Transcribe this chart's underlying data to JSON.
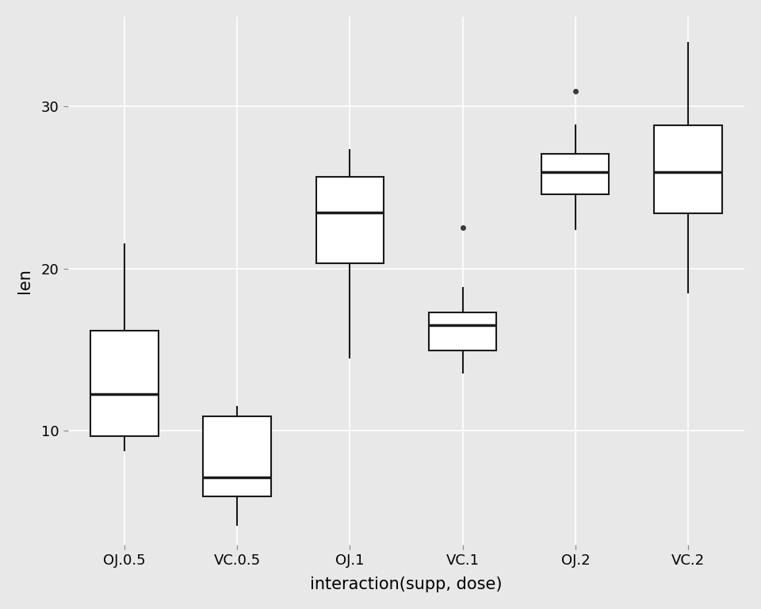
{
  "title": "",
  "xlabel": "interaction(supp, dose)",
  "ylabel": "len",
  "background_color": "#E8E8E8",
  "grid_color": "#FFFFFF",
  "box_color": "#FFFFFF",
  "box_edge_color": "#1A1A1A",
  "median_color": "#1A1A1A",
  "whisker_color": "#1A1A1A",
  "flier_color": "#3A3A3A",
  "categories": [
    "OJ.0.5",
    "VC.0.5",
    "OJ.1",
    "VC.1",
    "OJ.2",
    "VC.2"
  ],
  "ylim": [
    3.0,
    35.5
  ],
  "yticks": [
    10,
    20,
    30
  ],
  "box_data": {
    "OJ.0.5": {
      "q1": 9.7,
      "median": 12.25,
      "q3": 16.175,
      "whislo": 8.8,
      "whishi": 21.5,
      "fliers": []
    },
    "VC.0.5": {
      "q1": 5.95,
      "median": 7.15,
      "q3": 10.9,
      "whislo": 4.2,
      "whishi": 11.5,
      "fliers": []
    },
    "OJ.1": {
      "q1": 20.3,
      "median": 23.45,
      "q3": 25.65,
      "whislo": 14.5,
      "whishi": 27.3,
      "fliers": []
    },
    "VC.1": {
      "q1": 14.95,
      "median": 16.5,
      "q3": 17.3,
      "whislo": 13.6,
      "whishi": 18.8,
      "fliers": [
        22.5
      ]
    },
    "OJ.2": {
      "q1": 24.575,
      "median": 25.95,
      "q3": 27.075,
      "whislo": 22.4,
      "whishi": 28.8,
      "fliers": [
        30.9
      ]
    },
    "VC.2": {
      "q1": 23.375,
      "median": 25.95,
      "q3": 28.8,
      "whislo": 18.5,
      "whishi": 33.9,
      "fliers": []
    }
  },
  "box_width": 0.6,
  "linewidth": 1.5,
  "median_linewidth": 2.5,
  "flier_size": 5,
  "axis_label_fontsize": 15,
  "tick_fontsize": 13,
  "figsize": [
    9.6,
    7.68
  ],
  "dpi": 100
}
